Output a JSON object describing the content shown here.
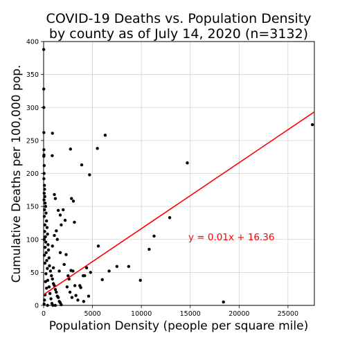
{
  "chart_data": {
    "type": "scatter",
    "title": [
      "COVID-19 Deaths vs. Population Density",
      "by county as of July 14, 2020 (n=3132)"
    ],
    "xlabel": "Population Density (people per square mile)",
    "ylabel": "Cumulative Deaths per 100,000 pop.",
    "xlim": [
      0,
      27700
    ],
    "ylim": [
      0,
      400
    ],
    "x_ticks": [
      0,
      5000,
      10000,
      15000,
      20000,
      25000
    ],
    "y_ticks": [
      0,
      50,
      100,
      150,
      200,
      250,
      300,
      350,
      400
    ],
    "grid": true,
    "series": [
      {
        "points": [
          [
            10,
            388
          ],
          [
            15,
            328
          ],
          [
            20,
            300
          ],
          [
            25,
            262
          ],
          [
            30,
            236
          ],
          [
            40,
            228
          ],
          [
            20,
            226
          ],
          [
            60,
            212
          ],
          [
            50,
            200
          ],
          [
            30,
            192
          ],
          [
            80,
            182
          ],
          [
            100,
            176
          ],
          [
            60,
            170
          ],
          [
            120,
            165
          ],
          [
            40,
            160
          ],
          [
            150,
            155
          ],
          [
            200,
            150
          ],
          [
            90,
            145
          ],
          [
            250,
            140
          ],
          [
            70,
            135
          ],
          [
            300,
            128
          ],
          [
            130,
            122
          ],
          [
            350,
            118
          ],
          [
            110,
            112
          ],
          [
            400,
            108
          ],
          [
            180,
            104
          ],
          [
            60,
            100
          ],
          [
            220,
            96
          ],
          [
            450,
            92
          ],
          [
            160,
            88
          ],
          [
            500,
            84
          ],
          [
            260,
            80
          ],
          [
            80,
            76
          ],
          [
            550,
            72
          ],
          [
            320,
            68
          ],
          [
            140,
            64
          ],
          [
            600,
            60
          ],
          [
            380,
            56
          ],
          [
            700,
            52
          ],
          [
            240,
            48
          ],
          [
            800,
            45
          ],
          [
            900,
            40
          ],
          [
            420,
            38
          ],
          [
            200,
            36
          ],
          [
            1000,
            33
          ],
          [
            1100,
            30
          ],
          [
            560,
            28
          ],
          [
            300,
            26
          ],
          [
            1200,
            24
          ],
          [
            1300,
            20
          ],
          [
            650,
            18
          ],
          [
            150,
            16
          ],
          [
            1400,
            14
          ],
          [
            1500,
            12
          ],
          [
            750,
            10
          ],
          [
            90,
            8
          ],
          [
            1600,
            6
          ],
          [
            1700,
            4
          ],
          [
            850,
            3
          ],
          [
            50,
            2
          ],
          [
            1800,
            1
          ],
          [
            950,
            0
          ],
          [
            400,
            0
          ],
          [
            1200,
            0
          ],
          [
            900,
            261
          ],
          [
            880,
            227
          ],
          [
            1100,
            168
          ],
          [
            1200,
            162
          ],
          [
            1500,
            144
          ],
          [
            1700,
            137
          ],
          [
            1800,
            122
          ],
          [
            2000,
            145
          ],
          [
            2200,
            129
          ],
          [
            1300,
            113
          ],
          [
            1100,
            106
          ],
          [
            1400,
            100
          ],
          [
            900,
            90
          ],
          [
            1700,
            80
          ],
          [
            2300,
            77
          ],
          [
            2100,
            62
          ],
          [
            1000,
            57
          ],
          [
            1600,
            52
          ],
          [
            2500,
            45
          ],
          [
            2800,
            53
          ],
          [
            3000,
            52
          ],
          [
            2600,
            40
          ],
          [
            3200,
            30
          ],
          [
            2400,
            28
          ],
          [
            2700,
            20
          ],
          [
            3300,
            15
          ],
          [
            2900,
            12
          ],
          [
            3500,
            8
          ],
          [
            2750,
            237
          ],
          [
            2850,
            162
          ],
          [
            3050,
            158
          ],
          [
            3150,
            126
          ],
          [
            3700,
            30
          ],
          [
            3900,
            213
          ],
          [
            4050,
            45
          ],
          [
            4200,
            45
          ],
          [
            4400,
            57
          ],
          [
            4600,
            14
          ],
          [
            4800,
            50
          ],
          [
            4700,
            198
          ],
          [
            4100,
            6
          ],
          [
            3800,
            27
          ],
          [
            5500,
            238
          ],
          [
            5600,
            90
          ],
          [
            6000,
            39
          ],
          [
            6300,
            258
          ],
          [
            6700,
            52
          ],
          [
            7500,
            59
          ],
          [
            8700,
            59
          ],
          [
            9900,
            38
          ],
          [
            10800,
            85
          ],
          [
            11300,
            105
          ],
          [
            12900,
            133
          ],
          [
            14700,
            216
          ],
          [
            18400,
            5
          ],
          [
            27500,
            274
          ]
        ]
      }
    ],
    "trendline": {
      "slope": 0.01,
      "intercept": 16.36,
      "x_range": [
        0,
        27700
      ],
      "label": "y = 0.01x + 16.36"
    },
    "colors": {
      "points": "#000000",
      "trendline": "#ff0000",
      "grid": "#d0d0d0"
    }
  }
}
